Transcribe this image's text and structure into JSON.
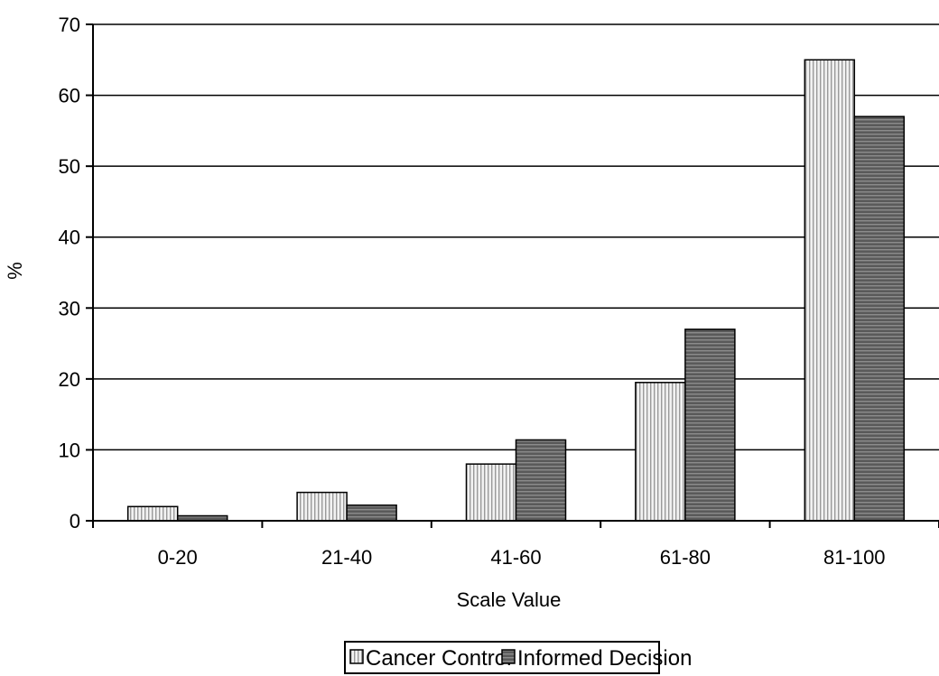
{
  "chart_data": {
    "type": "bar",
    "title": "",
    "xlabel": "Scale Value",
    "ylabel": "%",
    "categories": [
      "0-20",
      "21-40",
      "41-60",
      "61-80",
      "81-100"
    ],
    "ylim": [
      0,
      70
    ],
    "yticks": [
      0,
      10,
      20,
      30,
      40,
      50,
      60,
      70
    ],
    "grid": true,
    "legend_position": "bottom",
    "series": [
      {
        "name": "Cancer Control",
        "values": [
          2,
          4,
          8,
          19.5,
          65
        ],
        "color": "#e6e6e6",
        "pattern": "vertical-stripes"
      },
      {
        "name": "Informed Decision",
        "values": [
          0.7,
          2.2,
          11.4,
          27,
          57
        ],
        "color": "#666666",
        "pattern": "horizontal-stripes"
      }
    ]
  }
}
